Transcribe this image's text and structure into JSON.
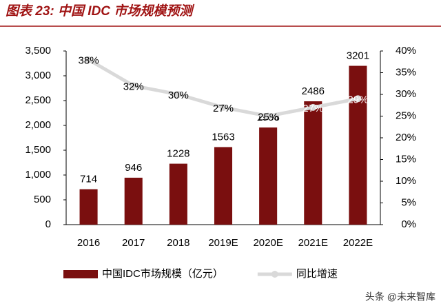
{
  "chart_data": {
    "type": "bar_line",
    "title": "图表 23: 中国 IDC 市场规模预测",
    "categories": [
      "2016",
      "2017",
      "2018",
      "2019E",
      "2020E",
      "2021E",
      "2022E"
    ],
    "series": [
      {
        "name": "中国IDC市场规模（亿元）",
        "color": "#7a0f0f",
        "type": "bar",
        "values": [
          714,
          946,
          1228,
          1563,
          1958,
          2486,
          3201
        ]
      },
      {
        "name": "同比增速",
        "color": "#d9d9d9",
        "type": "line",
        "axis": "y2",
        "values": [
          38,
          32,
          30,
          27,
          25,
          27,
          29
        ],
        "value_labels": [
          "38%",
          "32%",
          "30%",
          "27%",
          "25%",
          "27%",
          "29%"
        ]
      }
    ],
    "ylim": [
      0,
      3500
    ],
    "yticks": [
      0,
      500,
      {
        "value": 1000,
        "label": "1,000"
      },
      {
        "value": 1500,
        "label": "1,500"
      },
      {
        "value": 2000,
        "label": "2,000"
      },
      {
        "value": 2500,
        "label": "2,500"
      },
      {
        "value": 3000,
        "label": "3,000"
      },
      {
        "value": 3500,
        "label": "3,500"
      }
    ],
    "y2lim": [
      0,
      40
    ],
    "y2ticks": [
      {
        "value": 0,
        "label": "0%"
      },
      {
        "value": 5,
        "label": "5%"
      },
      {
        "value": 10,
        "label": "10%"
      },
      {
        "value": 15,
        "label": "15%"
      },
      {
        "value": 20,
        "label": "20%"
      },
      {
        "value": 25,
        "label": "25%"
      },
      {
        "value": 30,
        "label": "30%"
      },
      {
        "value": 35,
        "label": "35%"
      },
      {
        "value": 40,
        "label": "40%"
      }
    ],
    "watermark": "头条 @未来智库"
  }
}
